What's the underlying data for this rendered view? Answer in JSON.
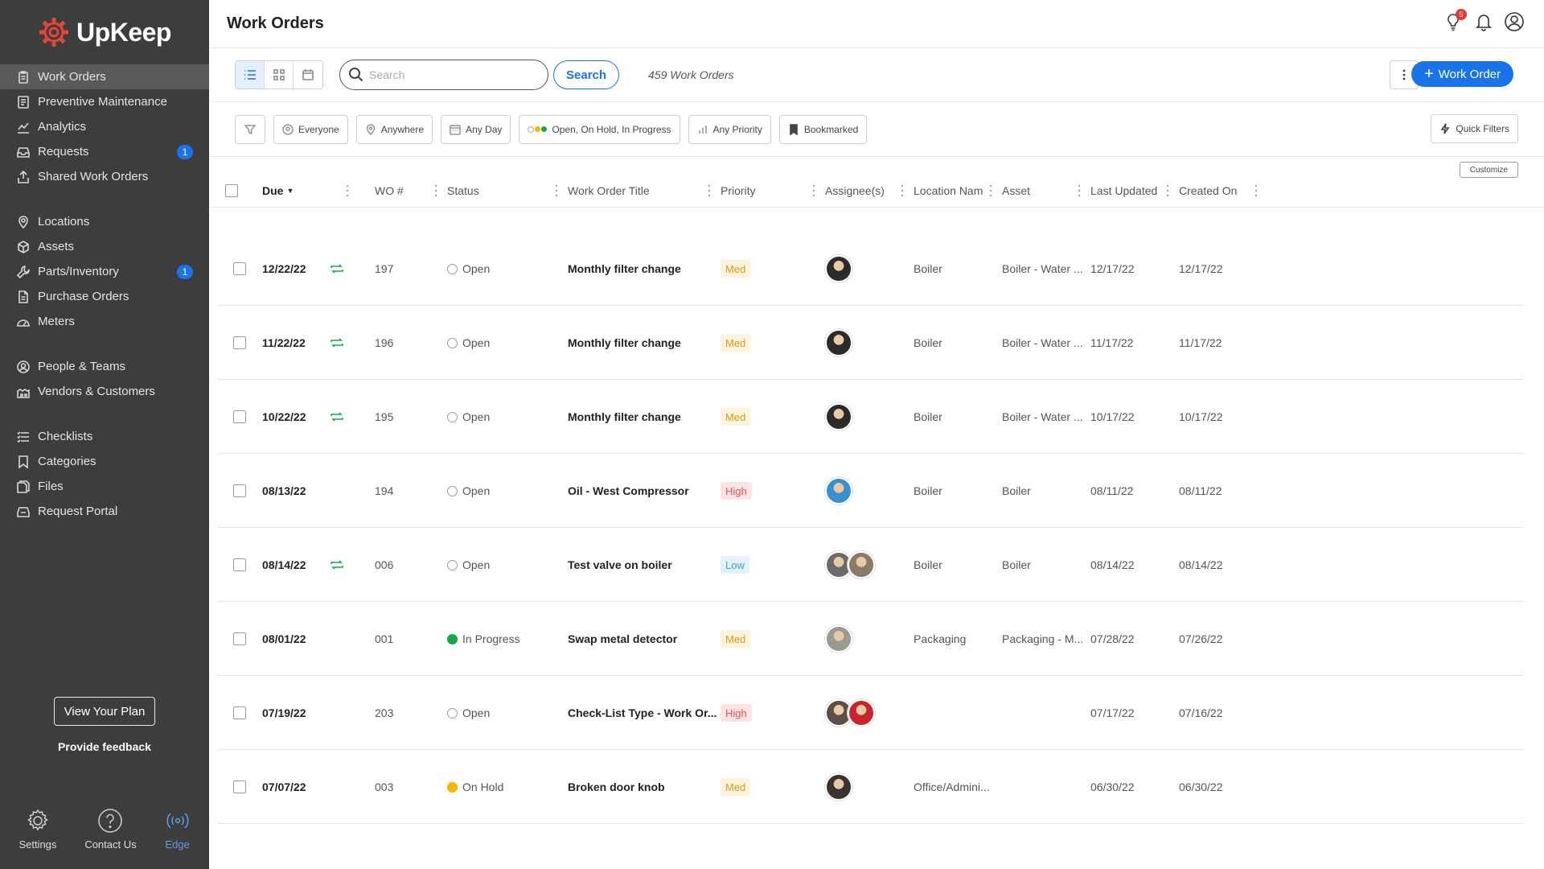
{
  "app": {
    "brand": "UpKeep",
    "colors": {
      "accent": "#1a73e8",
      "sidebar": "#3d3d3d",
      "brand_logo": "#e5463a"
    }
  },
  "sidebar": {
    "groups": [
      [
        {
          "label": "Work Orders",
          "icon": "clipboard-icon",
          "active": true
        },
        {
          "label": "Preventive Maintenance",
          "icon": "checklist-doc-icon"
        },
        {
          "label": "Analytics",
          "icon": "chart-icon"
        },
        {
          "label": "Requests",
          "icon": "inbox-icon",
          "badge": "1"
        },
        {
          "label": "Shared Work Orders",
          "icon": "share-icon"
        }
      ],
      [
        {
          "label": "Locations",
          "icon": "location-pin-icon"
        },
        {
          "label": "Assets",
          "icon": "cube-icon"
        },
        {
          "label": "Parts/Inventory",
          "icon": "wrench-icon",
          "badge": "1"
        },
        {
          "label": "Purchase Orders",
          "icon": "document-icon"
        },
        {
          "label": "Meters",
          "icon": "gauge-icon"
        }
      ],
      [
        {
          "label": "People & Teams",
          "icon": "people-icon"
        },
        {
          "label": "Vendors & Customers",
          "icon": "vendors-icon"
        }
      ],
      [
        {
          "label": "Checklists",
          "icon": "list-icon"
        },
        {
          "label": "Categories",
          "icon": "bookmark-icon"
        },
        {
          "label": "Files",
          "icon": "files-icon"
        },
        {
          "label": "Request Portal",
          "icon": "portal-icon"
        }
      ]
    ],
    "view_plan": "View Your Plan",
    "feedback": "Provide feedback",
    "bottom": [
      {
        "label": "Settings",
        "icon": "settings-gear-icon"
      },
      {
        "label": "Contact Us",
        "icon": "help-circle-icon"
      },
      {
        "label": "Edge",
        "icon": "broadcast-icon"
      }
    ]
  },
  "header": {
    "title": "Work Orders",
    "notification_badge": "5"
  },
  "toolbar": {
    "search_placeholder": "Search",
    "search_label": "Search",
    "count": "459 Work Orders",
    "new_button": "Work Order"
  },
  "filters": {
    "everyone": "Everyone",
    "anywhere": "Anywhere",
    "any_day": "Any Day",
    "status": "Open, On Hold, In Progress",
    "any_priority": "Any Priority",
    "bookmarked": "Bookmarked",
    "quick_filters": "Quick Filters",
    "customize": "Customize"
  },
  "table": {
    "columns": {
      "due": "Due",
      "wo": "WO #",
      "status": "Status",
      "title": "Work Order Title",
      "priority": "Priority",
      "assignees": "Assignee(s)",
      "location": "Location Nam",
      "asset": "Asset",
      "updated": "Last Updated",
      "created": "Created On"
    },
    "rows": [
      {
        "due": "12/22/22",
        "recurring": true,
        "wo": "197",
        "status": "Open",
        "status_type": "open",
        "title": "Monthly filter change",
        "priority": "Med",
        "assignees": [
          "#2b2b2b"
        ],
        "location": "Boiler",
        "asset": "Boiler - Water ...",
        "updated": "12/17/22",
        "created": "12/17/22"
      },
      {
        "due": "11/22/22",
        "recurring": true,
        "wo": "196",
        "status": "Open",
        "status_type": "open",
        "title": "Monthly filter change",
        "priority": "Med",
        "assignees": [
          "#2b2b2b"
        ],
        "location": "Boiler",
        "asset": "Boiler - Water ...",
        "updated": "11/17/22",
        "created": "11/17/22"
      },
      {
        "due": "10/22/22",
        "recurring": true,
        "wo": "195",
        "status": "Open",
        "status_type": "open",
        "title": "Monthly filter change",
        "priority": "Med",
        "assignees": [
          "#2b2b2b"
        ],
        "location": "Boiler",
        "asset": "Boiler - Water ...",
        "updated": "10/17/22",
        "created": "10/17/22"
      },
      {
        "due": "08/13/22",
        "recurring": false,
        "wo": "194",
        "status": "Open",
        "status_type": "open",
        "title": "Oil - West Compressor",
        "priority": "High",
        "assignees": [
          "#3a8fd0"
        ],
        "location": "Boiler",
        "asset": "Boiler",
        "updated": "08/11/22",
        "created": "08/11/22"
      },
      {
        "due": "08/14/22",
        "recurring": true,
        "wo": "006",
        "status": "Open",
        "status_type": "open",
        "title": "Test valve on boiler",
        "priority": "Low",
        "assignees": [
          "#6b6b6b",
          "#8a7a66"
        ],
        "location": "Boiler",
        "asset": "Boiler",
        "updated": "08/14/22",
        "created": "08/14/22"
      },
      {
        "due": "08/01/22",
        "recurring": false,
        "wo": "001",
        "status": "In Progress",
        "status_type": "in-progress",
        "title": "Swap metal detector",
        "priority": "Med",
        "assignees": [
          "#9a9a92"
        ],
        "location": "Packaging",
        "asset": "Packaging - M...",
        "updated": "07/28/22",
        "created": "07/26/22"
      },
      {
        "due": "07/19/22",
        "recurring": false,
        "wo": "203",
        "status": "Open",
        "status_type": "open",
        "title": "Check-List Type - Work Or...",
        "priority": "High",
        "assignees": [
          "#5a5048",
          "#c8242e"
        ],
        "location": "",
        "asset": "",
        "updated": "07/17/22",
        "created": "07/16/22"
      },
      {
        "due": "07/07/22",
        "recurring": false,
        "wo": "003",
        "status": "On Hold",
        "status_type": "on-hold",
        "title": "Broken door knob",
        "priority": "Med",
        "assignees": [
          "#3a3430"
        ],
        "location": "Office/Admini...",
        "asset": "",
        "updated": "06/30/22",
        "created": "06/30/22"
      }
    ]
  }
}
